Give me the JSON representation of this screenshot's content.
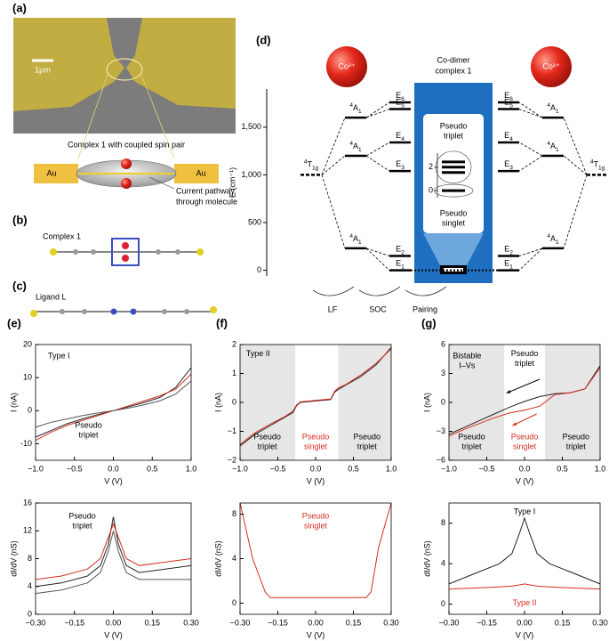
{
  "panel_labels": [
    "(a)",
    "(b)",
    "(c)",
    "(d)",
    "(e)",
    "(f)",
    "(g)"
  ],
  "panel_a": {
    "scale_bar": "1μm",
    "caption": "Complex 1 with coupled spin pair",
    "electrode_left": "Au",
    "electrode_right": "Au",
    "pathway": [
      "Current pathway",
      "through molecule"
    ]
  },
  "panel_b": {
    "label": "Complex 1"
  },
  "panel_c": {
    "label": "Ligand L"
  },
  "chart_data": [
    {
      "type": "levels",
      "ylabel": "E (cm⁻¹)",
      "ylim": [
        -60,
        1900
      ],
      "yticks": [
        0,
        500,
        {
          "value": 1000,
          "label": "1,000"
        },
        {
          "value": 1500,
          "label": "1,500"
        }
      ],
      "ion": "Co²⁺",
      "free_ion": {
        "sup": "4",
        "main": "T",
        "sub": "1g",
        "value": 1000
      },
      "lf_states": [
        {
          "sup": "4",
          "main": "A",
          "sub": "1",
          "value": 1600
        },
        {
          "sup": "4",
          "main": "A",
          "sub": "1",
          "value": 1200
        },
        {
          "sup": "4",
          "main": "A",
          "sub": "1",
          "value": 230
        }
      ],
      "soc_states": [
        {
          "main": "E",
          "sub": "6",
          "value": 1760
        },
        {
          "main": "E",
          "sub": "5",
          "value": 1690
        },
        {
          "main": "E",
          "sub": "4",
          "value": 1340
        },
        {
          "main": "E",
          "sub": "3",
          "value": 1040
        },
        {
          "main": "E",
          "sub": "2",
          "value": 150
        },
        {
          "main": "E",
          "sub": "1",
          "value": 0
        }
      ],
      "dimer": {
        "title": [
          "Co-dimer",
          "complex 1"
        ],
        "inset": {
          "ylim": [
            -0.6,
            3.2
          ],
          "yticks": [
            0,
            2
          ],
          "levels": [
            0,
            1.55,
            2,
            2.45
          ],
          "top_label": [
            "Pseudo",
            "triplet"
          ],
          "bottom_label": [
            "Pseudo",
            "singlet"
          ]
        }
      },
      "steps": [
        "LF",
        "SOC",
        "Pairing"
      ]
    },
    {
      "type": "line",
      "xlabel": "V (V)",
      "ylabel": "I (nA)",
      "xlim": [
        -1,
        1
      ],
      "xticks": [
        {
          "value": -1,
          "label": "−1.0"
        },
        {
          "value": -0.5,
          "label": "−0.5"
        },
        {
          "value": 0,
          "label": "0.0"
        },
        {
          "value": 0.5,
          "label": "0.5"
        },
        {
          "value": 1,
          "label": "1.0"
        }
      ],
      "ylim": [
        -15,
        20
      ],
      "yticks": [
        -10,
        0,
        10,
        20
      ],
      "x": [
        -1,
        -0.8,
        -0.6,
        -0.4,
        -0.2,
        0,
        0.2,
        0.4,
        0.6,
        0.8,
        1
      ],
      "series": [
        {
          "color": "#222222",
          "values": [
            -8,
            -6,
            -4,
            -2.5,
            -1.2,
            0,
            1.2,
            2.5,
            4,
            7,
            13
          ]
        },
        {
          "color": "#d62d20",
          "values": [
            -9,
            -6.5,
            -4.5,
            -3,
            -1.5,
            0,
            1.5,
            3,
            4.5,
            6.5,
            11
          ]
        },
        {
          "color": "#555555",
          "values": [
            -5,
            -3.5,
            -2.5,
            -1.5,
            -0.7,
            0,
            0.8,
            1.8,
            3,
            5,
            9
          ]
        }
      ],
      "annotations": [
        {
          "text": [
            "Type I"
          ]
        },
        {
          "text": [
            "Pseudo",
            "triplet"
          ]
        }
      ]
    },
    {
      "type": "line",
      "xlabel": "V (V)",
      "ylabel": "I (nA)",
      "xlim": [
        -1,
        1
      ],
      "xticks": [
        {
          "value": -1,
          "label": "−1.0"
        },
        {
          "value": -0.5,
          "label": "−0.5"
        },
        {
          "value": 0,
          "label": "0.0"
        },
        {
          "value": 0.5,
          "label": "0.5"
        },
        {
          "value": 1,
          "label": "1.0"
        }
      ],
      "ylim": [
        -2,
        2
      ],
      "yticks": [
        {
          "value": -2,
          "label": "−2"
        },
        {
          "value": -1,
          "label": "−1"
        },
        0,
        1,
        2
      ],
      "shaded_regions": [
        [
          -1,
          -0.27
        ],
        [
          0.3,
          1
        ]
      ],
      "x": [
        -1,
        -0.8,
        -0.6,
        -0.4,
        -0.3,
        -0.25,
        -0.2,
        0,
        0.2,
        0.25,
        0.3,
        0.4,
        0.6,
        0.8,
        1
      ],
      "series": [
        {
          "color": "#222222",
          "values": [
            -1.5,
            -1.1,
            -0.8,
            -0.5,
            -0.35,
            -0.1,
            0,
            0.05,
            0.1,
            0.35,
            0.45,
            0.6,
            0.9,
            1.3,
            1.9
          ]
        },
        {
          "color": "#d62d20",
          "values": [
            -1.45,
            -1.05,
            -0.75,
            -0.48,
            -0.3,
            -0.08,
            0.02,
            0.07,
            0.12,
            0.38,
            0.5,
            0.62,
            0.95,
            1.35,
            1.85
          ]
        }
      ],
      "annotations": [
        {
          "text": [
            "Type II"
          ]
        },
        {
          "text": [
            "Pseudo",
            "triplet"
          ]
        },
        {
          "text": [
            "Pseudo",
            "singlet"
          ],
          "color": "#d62d20"
        },
        {
          "text": [
            "Pseudo",
            "triplet"
          ]
        }
      ]
    },
    {
      "type": "line",
      "xlabel": "V (V)",
      "ylabel": "I (nA)",
      "xlim": [
        -1,
        1
      ],
      "xticks": [
        {
          "value": -1,
          "label": "−1.0"
        },
        {
          "value": -0.5,
          "label": "−0.5"
        },
        {
          "value": 0,
          "label": "0.0"
        },
        {
          "value": 0.5,
          "label": "0.5"
        },
        {
          "value": 1,
          "label": "1.0"
        }
      ],
      "ylim": [
        -6,
        6
      ],
      "yticks": [
        {
          "value": -6,
          "label": "−6"
        },
        {
          "value": -3,
          "label": "−3"
        },
        0,
        3,
        6
      ],
      "shaded_regions": [
        [
          -1,
          -0.27
        ],
        [
          0.27,
          1
        ]
      ],
      "x": [
        -1,
        -0.8,
        -0.6,
        -0.4,
        -0.2,
        0,
        0.2,
        0.4,
        0.6,
        0.8,
        1
      ],
      "series": [
        {
          "color": "#222222",
          "values": [
            -3.3,
            -2.6,
            -1.9,
            -1.2,
            -0.5,
            0.1,
            0.6,
            0.9,
            1,
            1.4,
            3.8
          ]
        },
        {
          "color": "#d62d20",
          "values": [
            -3.5,
            -2.8,
            -2.2,
            -1.6,
            -1.1,
            -0.8,
            -0.4,
            0.8,
            1,
            1.4,
            3.6
          ]
        }
      ],
      "annotations": [
        {
          "text": [
            "Bistable",
            "I–Vs"
          ]
        },
        {
          "text": [
            "Pseudo",
            "triplet"
          ]
        },
        {
          "text": [
            "Pseudo",
            "singlet"
          ],
          "color": "#d62d20"
        },
        {
          "text": [
            "Pseudo",
            "triplet"
          ]
        },
        {
          "text": [
            "Pseudo",
            "triplet"
          ]
        }
      ]
    },
    {
      "type": "line",
      "xlabel": "V (V)",
      "ylabel": "dI/dV (nS)",
      "xlim": [
        -0.3,
        0.3
      ],
      "xticks": [
        {
          "value": -0.3,
          "label": "−0.30"
        },
        {
          "value": -0.15,
          "label": "−0.15"
        },
        {
          "value": 0,
          "label": "0.00"
        },
        {
          "value": 0.15,
          "label": "0.15"
        },
        {
          "value": 0.3,
          "label": "0.30"
        }
      ],
      "ylim": [
        0,
        16
      ],
      "yticks": [
        0,
        4,
        8,
        12,
        16
      ],
      "x": [
        -0.3,
        -0.2,
        -0.1,
        -0.05,
        -0.02,
        0,
        0.02,
        0.05,
        0.1,
        0.2,
        0.3
      ],
      "series": [
        {
          "color": "#222222",
          "values": [
            4,
            4.5,
            5.5,
            7,
            10,
            14,
            10,
            7,
            6,
            6.5,
            7
          ]
        },
        {
          "color": "#d62d20",
          "values": [
            5,
            5.5,
            6.5,
            8,
            11,
            13,
            11,
            8,
            7,
            7.5,
            8
          ]
        },
        {
          "color": "#555555",
          "values": [
            3,
            3.5,
            4.5,
            6,
            9,
            12,
            9,
            6,
            5,
            5,
            5
          ]
        }
      ],
      "annotations": [
        {
          "text": [
            "Pseudo",
            "triplet"
          ]
        }
      ]
    },
    {
      "type": "line",
      "xlabel": "V (V)",
      "ylabel": "dI/dV (nS)",
      "xlim": [
        -0.3,
        0.3
      ],
      "xticks": [
        {
          "value": -0.3,
          "label": "−0.30"
        },
        {
          "value": -0.15,
          "label": "−0.15"
        },
        {
          "value": 0,
          "label": "0.00"
        },
        {
          "value": 0.15,
          "label": "0.15"
        },
        {
          "value": 0.3,
          "label": "0.30"
        }
      ],
      "ylim": [
        -1,
        9
      ],
      "yticks": [
        0,
        4,
        8
      ],
      "x": [
        -0.3,
        -0.25,
        -0.2,
        -0.18,
        -0.1,
        0,
        0.1,
        0.2,
        0.22,
        0.25,
        0.3
      ],
      "series": [
        {
          "color": "#d62d20",
          "values": [
            9,
            4,
            1,
            0.5,
            0.5,
            0.5,
            0.5,
            0.5,
            1,
            5,
            9
          ]
        }
      ],
      "annotations": [
        {
          "text": [
            "Pseudo",
            "singlet"
          ],
          "color": "#d62d20"
        }
      ]
    },
    {
      "type": "line",
      "xlabel": "V (V)",
      "ylabel": "dI/dV (nS)",
      "xlim": [
        -0.3,
        0.3
      ],
      "xticks": [
        {
          "value": -0.3,
          "label": "−0.30"
        },
        {
          "value": -0.15,
          "label": "−0.15"
        },
        {
          "value": 0,
          "label": "0.00"
        },
        {
          "value": 0.15,
          "label": "0.15"
        },
        {
          "value": 0.3,
          "label": "0.30"
        }
      ],
      "ylim": [
        -1,
        10
      ],
      "yticks": [
        0,
        4,
        8
      ],
      "x": [
        -0.3,
        -0.2,
        -0.1,
        -0.05,
        -0.02,
        0,
        0.02,
        0.05,
        0.1,
        0.2,
        0.3
      ],
      "series": [
        {
          "color": "#222222",
          "values": [
            2,
            3,
            4,
            5,
            7,
            8.5,
            7,
            5,
            4,
            3,
            2
          ]
        },
        {
          "color": "#d62d20",
          "values": [
            1.5,
            1.6,
            1.7,
            1.8,
            1.9,
            2,
            1.9,
            1.8,
            1.7,
            1.6,
            1.5
          ]
        }
      ],
      "annotations": [
        {
          "text": [
            "Type I"
          ]
        },
        {
          "text": [
            "Type II"
          ],
          "color": "#d62d20"
        }
      ]
    }
  ]
}
